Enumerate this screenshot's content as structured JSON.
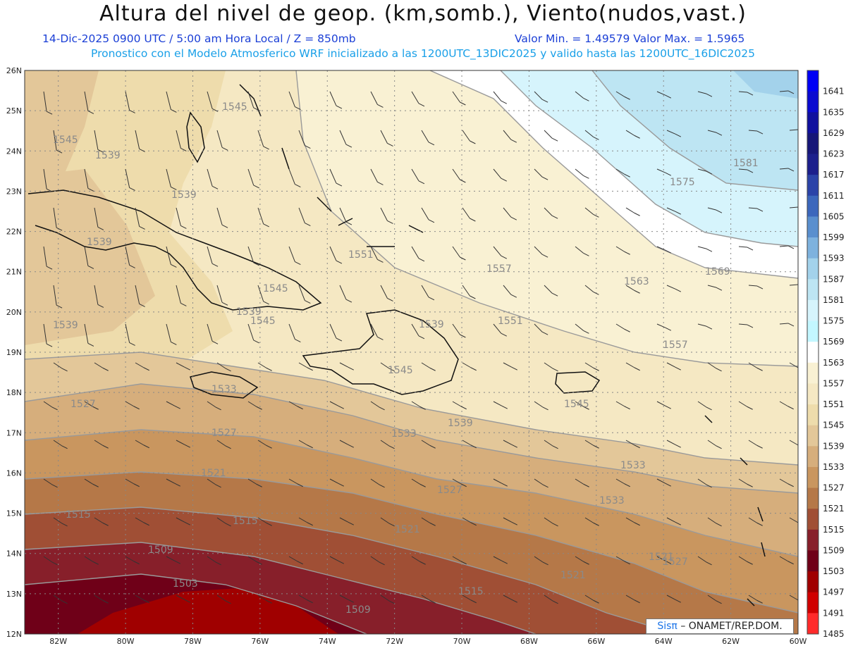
{
  "header": {
    "title": "Altura del nivel de geop. (km,somb.), Viento(nudos,vast.)",
    "line1_left": "14-Dic-2025   0900 UTC / 5:00 am Hora Local / Z = 850mb",
    "line1_right": "Valor Min. = 1.49579  Valor Max. = 1.5965",
    "line2": "Pronostico con el Modelo Atmosferico WRF inicializado a las 1200UTC_13DIC2025 y valido hasta las  1200UTC_16DIC2025"
  },
  "map": {
    "lon_range": [
      -83,
      -60
    ],
    "lat_range": [
      12,
      26
    ],
    "lon_labels": [
      "82W",
      "80W",
      "78W",
      "76W",
      "74W",
      "72W",
      "70W",
      "68W",
      "66W",
      "64W",
      "62W",
      "60W"
    ],
    "lat_labels": [
      "26N",
      "25N",
      "24N",
      "23N",
      "22N",
      "21N",
      "20N",
      "19N",
      "18N",
      "17N",
      "16N",
      "15N",
      "14N",
      "13N",
      "12N"
    ],
    "contour_labels": [
      "1545",
      "1545",
      "1539",
      "1539",
      "1539",
      "1539",
      "1545",
      "1539",
      "1551",
      "1557",
      "1563",
      "1569",
      "1575",
      "1581",
      "1545",
      "1551",
      "1557",
      "1545",
      "1539",
      "1533",
      "1533",
      "1527",
      "1521",
      "1527",
      "1515",
      "1515",
      "1521",
      "1509",
      "1503",
      "1509",
      "1515",
      "1521",
      "1527",
      "1533",
      "1521",
      "1545",
      "1539",
      "1527",
      "1533"
    ]
  },
  "colorbar": {
    "labels": [
      "1641",
      "1635",
      "1629",
      "1623",
      "1617",
      "1611",
      "1605",
      "1599",
      "1593",
      "1587",
      "1581",
      "1575",
      "1569",
      "1563",
      "1557",
      "1551",
      "1545",
      "1539",
      "1533",
      "1527",
      "1521",
      "1515",
      "1509",
      "1503",
      "1497",
      "1491",
      "1485"
    ],
    "colors": [
      "#0000f5",
      "#0a0ad0",
      "#10109e",
      "#161678",
      "#1c1f8c",
      "#2b43a8",
      "#3c67bc",
      "#5a8fce",
      "#7eb2de",
      "#a3d2eb",
      "#bde5f3",
      "#d6f4fc",
      "#c3f7ff",
      "#ffffff",
      "#f9f1d3",
      "#f5e8c3",
      "#eedcac",
      "#e3c799",
      "#d6ae7c",
      "#c9965f",
      "#b57848",
      "#a04f35",
      "#871f2a",
      "#6f0018",
      "#a00000",
      "#d00000",
      "#ff2a2a"
    ]
  },
  "credit": {
    "brand": "Sisπ",
    "org": "– ONAMET/REP.DOM."
  }
}
